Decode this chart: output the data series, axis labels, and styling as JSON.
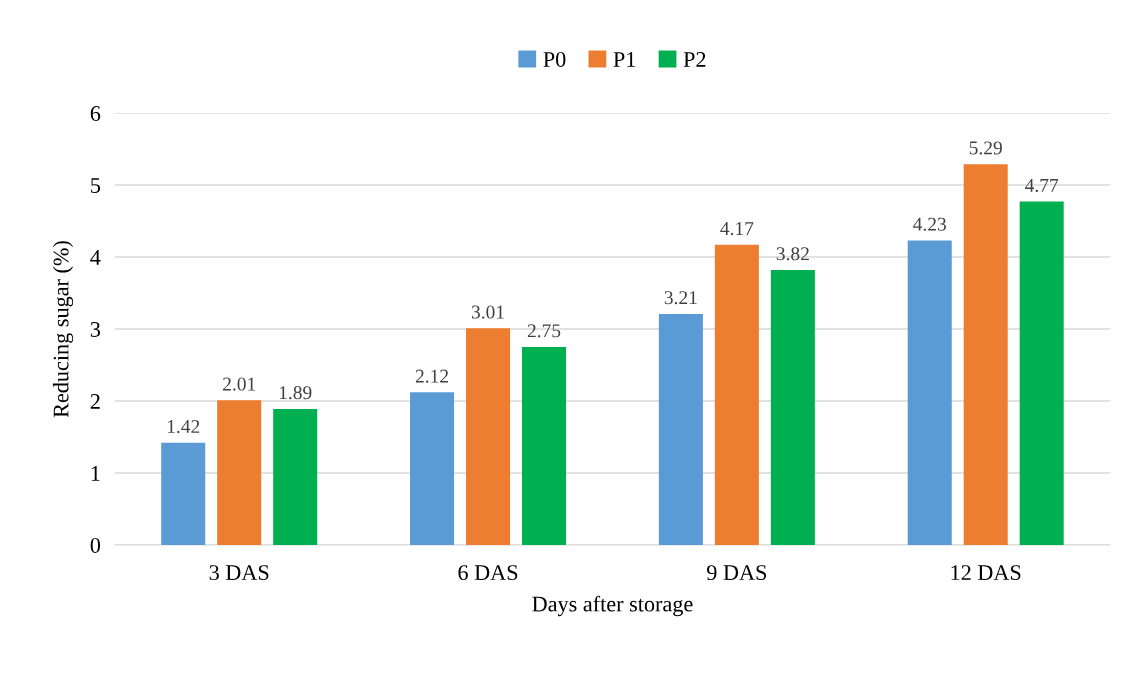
{
  "chart_data": {
    "type": "bar",
    "xlabel": "Days after storage",
    "ylabel": "Reducing sugar (%)",
    "categories": [
      "3 DAS",
      "6 DAS",
      "9 DAS",
      "12 DAS"
    ],
    "series": [
      {
        "name": "P0",
        "color": "#5b9bd5",
        "values": [
          1.42,
          2.12,
          3.21,
          4.23
        ]
      },
      {
        "name": "P1",
        "color": "#ed7d31",
        "values": [
          2.01,
          3.01,
          4.17,
          5.29
        ]
      },
      {
        "name": "P2",
        "color": "#00b050",
        "values": [
          1.89,
          2.75,
          3.82,
          4.77
        ]
      }
    ],
    "ylim": [
      0,
      6
    ],
    "yticks": [
      0,
      1,
      2,
      3,
      4,
      5,
      6
    ],
    "grid": "y",
    "legend": "top",
    "data_labels": true
  }
}
